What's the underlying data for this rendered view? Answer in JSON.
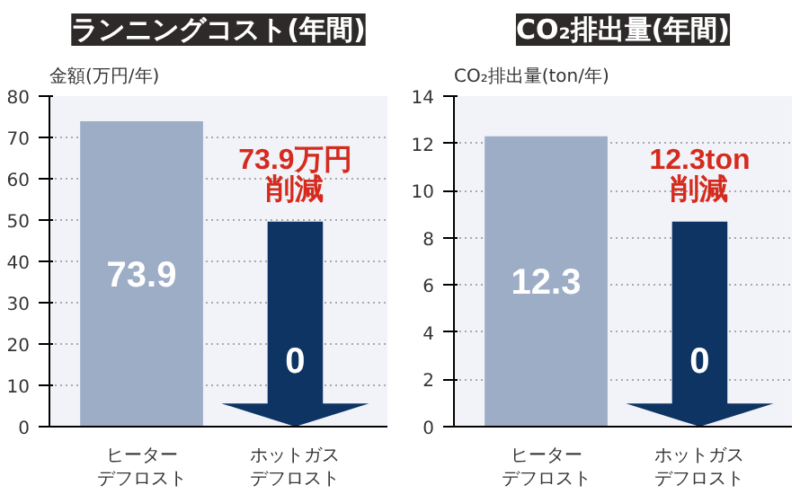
{
  "chart_data": [
    {
      "type": "bar",
      "title": "ランニングコスト(年間)",
      "ylabel": "金額(万円/年)",
      "categories": [
        "ヒーターデフロスト",
        "ホットガスデフロスト"
      ],
      "values": [
        73.9,
        0
      ],
      "color": "#9dadc6",
      "ylim": [
        0,
        80
      ],
      "yticks": [
        0,
        10,
        20,
        30,
        40,
        50,
        60,
        70,
        80
      ],
      "grid": "y",
      "data_labels": true,
      "annotations": [
        "73.9万円",
        "削減"
      ]
    },
    {
      "type": "bar",
      "title": "CO₂排出量(年間)",
      "ylabel": "CO₂排出量(ton/年)",
      "categories": [
        "ヒーターデフロスト",
        "ホットガスデフロスト"
      ],
      "values": [
        12.3,
        0
      ],
      "color": "#9dadc6",
      "ylim": [
        0,
        14
      ],
      "yticks": [
        0,
        2,
        4,
        6,
        8,
        10,
        12,
        14
      ],
      "grid": "y",
      "data_labels": true,
      "annotations": [
        "12.3ton",
        "削減"
      ]
    }
  ]
}
